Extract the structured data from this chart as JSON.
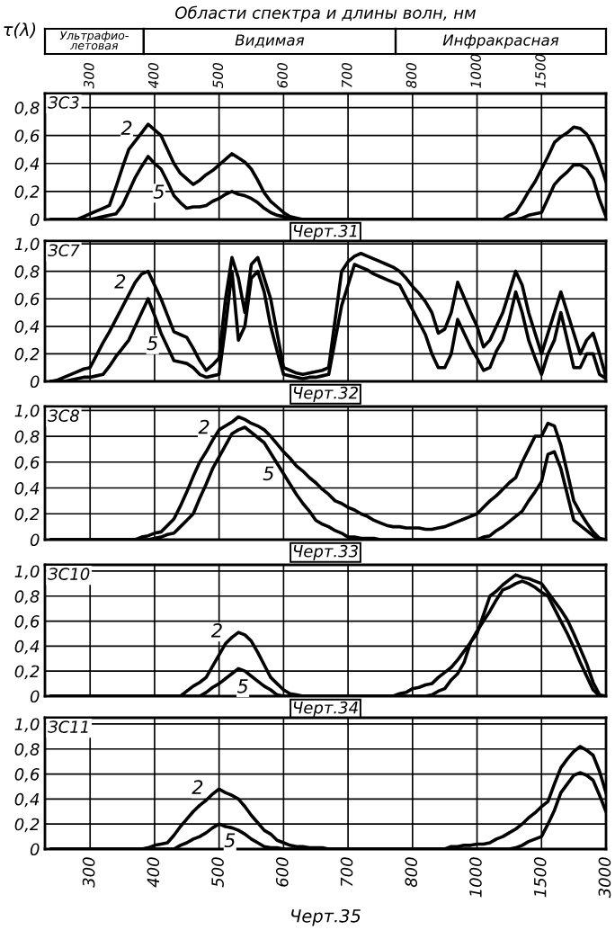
{
  "chart_data": [
    {
      "type": "line",
      "title": "ЗС3",
      "ylabel": "τ(λ)",
      "x2label": "Области спектра и длины волн, нм",
      "annotations": [
        "Черт.31",
        "Ультрафио-\nлетовая",
        "Видимая",
        "Инфракрасная"
      ],
      "categories": [
        null,
        null,
        null,
        null,
        null,
        null,
        "300",
        null,
        null,
        null,
        null,
        null,
        null,
        null,
        null,
        null,
        "400",
        null,
        null,
        null,
        null,
        null,
        null,
        null,
        null,
        null,
        "500",
        null,
        null,
        null,
        null,
        null,
        null,
        null,
        null,
        null,
        "600",
        null,
        null,
        null,
        null,
        null,
        null,
        null,
        null,
        null,
        "700",
        null,
        null,
        null,
        null,
        null,
        null,
        null,
        null,
        null,
        "800",
        null,
        null,
        null,
        null,
        null,
        null,
        null,
        null,
        null,
        "1000",
        null,
        null,
        null,
        null,
        null,
        null,
        null,
        null,
        null,
        "1500",
        null,
        null,
        null,
        null,
        null,
        null,
        null,
        null,
        null,
        null
      ],
      "ylim": [
        0,
        0.9
      ],
      "yticks": [
        {
          "value": 0,
          "label": "0"
        },
        {
          "value": 0.2,
          "label": "0,2"
        },
        {
          "value": 0.4,
          "label": "0,4"
        },
        {
          "value": 0.6,
          "label": "0,6"
        },
        {
          "value": 0.8,
          "label": "0,8"
        }
      ],
      "grid": true,
      "series": [
        {
          "name": "2",
          "color": "#000000",
          "values": [
            0,
            0,
            0,
            0,
            0,
            0.02,
            0.04,
            0.06,
            0.08,
            0.1,
            0.23,
            0.37,
            0.5,
            0.56,
            0.62,
            0.68,
            0.64,
            0.6,
            0.5,
            0.4,
            0.33,
            0.29,
            0.25,
            0.28,
            0.32,
            0.35,
            0.39,
            0.43,
            0.47,
            0.44,
            0.41,
            0.36,
            0.28,
            0.19,
            0.13,
            0.09,
            0.05,
            0.02,
            0.01,
            0,
            0,
            0,
            0,
            0,
            0,
            0,
            0,
            0,
            0,
            0,
            0,
            0,
            0,
            0,
            0,
            0,
            0,
            0,
            0,
            0,
            0,
            0,
            0,
            0,
            0,
            0,
            0,
            0,
            0,
            0,
            0,
            0.03,
            0.05,
            0.12,
            0.2,
            0.27,
            0.36,
            0.45,
            0.55,
            0.59,
            0.62,
            0.66,
            0.65,
            0.61,
            0.53,
            0.41,
            0.27
          ]
        },
        {
          "name": "5",
          "color": "#000000",
          "values": [
            0,
            0,
            0,
            0,
            0,
            0,
            0,
            0.01,
            0.02,
            0.03,
            0.04,
            0.1,
            0.2,
            0.3,
            0.38,
            0.45,
            0.4,
            0.36,
            0.27,
            0.17,
            0.12,
            0.08,
            0.09,
            0.09,
            0.1,
            0.13,
            0.15,
            0.18,
            0.2,
            0.18,
            0.17,
            0.15,
            0.12,
            0.08,
            0.05,
            0.03,
            0.02,
            0,
            0,
            0,
            0,
            0,
            0,
            0,
            0,
            0,
            0,
            0,
            0,
            0,
            0,
            0,
            0,
            0,
            0,
            0,
            0,
            0,
            0,
            0,
            0,
            0,
            0,
            0,
            0,
            0,
            0,
            0,
            0,
            0,
            0,
            0,
            0,
            0.01,
            0.03,
            0.04,
            0.05,
            0.15,
            0.25,
            0.3,
            0.34,
            0.39,
            0.39,
            0.36,
            0.29,
            0.14,
            0.02
          ]
        }
      ]
    },
    {
      "type": "line",
      "title": "ЗС7",
      "annotations": [
        "Черт.32"
      ],
      "categories": [
        null,
        null,
        null,
        null,
        null,
        null,
        "300",
        null,
        null,
        null,
        null,
        null,
        null,
        null,
        null,
        null,
        "400",
        null,
        null,
        null,
        null,
        null,
        null,
        null,
        null,
        null,
        "500",
        null,
        null,
        null,
        null,
        null,
        null,
        null,
        null,
        null,
        "600",
        null,
        null,
        null,
        null,
        null,
        null,
        null,
        null,
        null,
        "700",
        null,
        null,
        null,
        null,
        null,
        null,
        null,
        null,
        null,
        "800",
        null,
        null,
        null,
        null,
        null,
        null,
        null,
        null,
        null,
        "1000",
        null,
        null,
        null,
        null,
        null,
        null,
        null,
        null,
        null,
        "1500",
        null,
        null,
        null,
        null,
        null,
        null,
        null,
        null,
        null,
        "3000"
      ],
      "ylim": [
        0,
        1.02
      ],
      "yticks": [
        {
          "value": 0,
          "label": "0"
        },
        {
          "value": 0.2,
          "label": "0,2"
        },
        {
          "value": 0.4,
          "label": "0,4"
        },
        {
          "value": 0.6,
          "label": "0,6"
        },
        {
          "value": 0.8,
          "label": "0,8"
        },
        {
          "value": 1.0,
          "label": "1,0"
        }
      ],
      "grid": true,
      "tick_labels": "y",
      "series": [
        {
          "name": "2",
          "color": "#000000",
          "values": [
            0,
            0.01,
            0.03,
            0.05,
            0.07,
            0.09,
            0.1,
            0.19,
            0.28,
            0.36,
            0.45,
            0.54,
            0.63,
            0.72,
            0.78,
            0.8,
            0.7,
            0.6,
            0.48,
            0.36,
            0.34,
            0.32,
            0.24,
            0.15,
            0.08,
            0.12,
            0.17,
            0.6,
            0.9,
            0.75,
            0.5,
            0.85,
            0.9,
            0.75,
            0.6,
            0.35,
            0.1,
            0.08,
            0.06,
            0.05,
            0.06,
            0.07,
            0.08,
            0.1,
            0.45,
            0.8,
            0.87,
            0.91,
            0.93,
            0.91,
            0.89,
            0.87,
            0.85,
            0.83,
            0.8,
            0.75,
            0.69,
            0.64,
            0.58,
            0.5,
            0.35,
            0.38,
            0.5,
            0.72,
            0.61,
            0.5,
            0.4,
            0.25,
            0.3,
            0.4,
            0.5,
            0.65,
            0.8,
            0.7,
            0.5,
            0.35,
            0.2,
            0.35,
            0.5,
            0.65,
            0.5,
            0.35,
            0.2,
            0.3,
            0.35,
            0.2,
            0.03
          ]
        },
        {
          "name": "5",
          "color": "#000000",
          "values": [
            0,
            0,
            0,
            0.01,
            0.02,
            0.03,
            0.03,
            0.04,
            0.05,
            0.11,
            0.18,
            0.24,
            0.3,
            0.4,
            0.5,
            0.6,
            0.48,
            0.35,
            0.25,
            0.15,
            0.14,
            0.13,
            0.1,
            0.05,
            0.03,
            0.04,
            0.05,
            0.4,
            0.8,
            0.3,
            0.4,
            0.75,
            0.8,
            0.65,
            0.4,
            0.22,
            0.05,
            0.04,
            0.03,
            0.02,
            0.03,
            0.03,
            0.04,
            0.05,
            0.3,
            0.55,
            0.7,
            0.85,
            0.83,
            0.81,
            0.78,
            0.76,
            0.74,
            0.72,
            0.7,
            0.61,
            0.52,
            0.43,
            0.34,
            0.2,
            0.1,
            0.1,
            0.2,
            0.45,
            0.35,
            0.25,
            0.17,
            0.08,
            0.1,
            0.22,
            0.3,
            0.45,
            0.65,
            0.5,
            0.3,
            0.17,
            0.05,
            0.2,
            0.3,
            0.5,
            0.3,
            0.1,
            0.1,
            0.2,
            0.2,
            0.05,
            0.02
          ]
        }
      ]
    },
    {
      "type": "line",
      "title": "ЗС8",
      "annotations": [
        "Черт.33"
      ],
      "categories": [
        null,
        null,
        null,
        null,
        null,
        null,
        "300",
        null,
        null,
        null,
        null,
        null,
        null,
        null,
        null,
        null,
        "400",
        null,
        null,
        null,
        null,
        null,
        null,
        null,
        null,
        null,
        "500",
        null,
        null,
        null,
        null,
        null,
        null,
        null,
        null,
        null,
        "600",
        null,
        null,
        null,
        null,
        null,
        null,
        null,
        null,
        null,
        "700",
        null,
        null,
        null,
        null,
        null,
        null,
        null,
        null,
        null,
        "800",
        null,
        null,
        null,
        null,
        null,
        null,
        null,
        null,
        null,
        "1000",
        null,
        null,
        null,
        null,
        null,
        null,
        null,
        null,
        null,
        "1500",
        null,
        null,
        null,
        null,
        null,
        null,
        null,
        null,
        null,
        "3000"
      ],
      "ylim": [
        0,
        1.03
      ],
      "yticks": [
        {
          "value": 0,
          "label": "0"
        },
        {
          "value": 0.2,
          "label": "0,2"
        },
        {
          "value": 0.4,
          "label": "0,4"
        },
        {
          "value": 0.6,
          "label": "0,6"
        },
        {
          "value": 0.8,
          "label": "0,8"
        },
        {
          "value": 1.0,
          "label": "1,0"
        }
      ],
      "grid": true,
      "tick_labels": "y",
      "series": [
        {
          "name": "2",
          "color": "#000000",
          "values": [
            0,
            0,
            0,
            0,
            0,
            0,
            0,
            0,
            0,
            0,
            0,
            0,
            0,
            0,
            0.02,
            0.03,
            0.05,
            0.06,
            0.11,
            0.16,
            0.26,
            0.37,
            0.49,
            0.6,
            0.68,
            0.77,
            0.85,
            0.88,
            0.91,
            0.95,
            0.93,
            0.9,
            0.88,
            0.85,
            0.8,
            0.74,
            0.68,
            0.63,
            0.57,
            0.53,
            0.48,
            0.44,
            0.39,
            0.35,
            0.3,
            0.28,
            0.25,
            0.23,
            0.2,
            0.18,
            0.15,
            0.13,
            0.11,
            0.1,
            0.1,
            0.09,
            0.09,
            0.09,
            0.08,
            0.08,
            0.09,
            0.1,
            0.12,
            0.14,
            0.16,
            0.18,
            0.2,
            0.25,
            0.3,
            0.34,
            0.39,
            0.44,
            0.48,
            0.6,
            0.7,
            0.8,
            0.8,
            0.9,
            0.88,
            0.73,
            0.52,
            0.3,
            0.21,
            0.13,
            0.06,
            0.01,
            0
          ]
        },
        {
          "name": "5",
          "color": "#000000",
          "values": [
            0,
            0,
            0,
            0,
            0,
            0,
            0,
            0,
            0,
            0,
            0,
            0,
            0,
            0,
            0,
            0,
            0.01,
            0.02,
            0.04,
            0.05,
            0.1,
            0.15,
            0.2,
            0.32,
            0.43,
            0.55,
            0.64,
            0.73,
            0.82,
            0.85,
            0.87,
            0.83,
            0.79,
            0.75,
            0.67,
            0.59,
            0.51,
            0.43,
            0.35,
            0.28,
            0.22,
            0.15,
            0.12,
            0.1,
            0.07,
            0.05,
            0.02,
            0.02,
            0.01,
            0.01,
            0.01,
            0,
            0,
            0,
            0,
            0,
            0,
            0,
            0,
            0,
            0,
            0,
            0,
            0,
            0,
            0,
            0,
            0.02,
            0.03,
            0.07,
            0.1,
            0.14,
            0.18,
            0.22,
            0.3,
            0.37,
            0.45,
            0.66,
            0.68,
            0.55,
            0.35,
            0.15,
            0.11,
            0.07,
            0.03,
            0,
            0
          ]
        }
      ]
    },
    {
      "type": "line",
      "title": "ЗС10",
      "annotations": [
        "Черт.34"
      ],
      "categories": [
        null,
        null,
        null,
        null,
        null,
        null,
        "300",
        null,
        null,
        null,
        null,
        null,
        null,
        null,
        null,
        null,
        "400",
        null,
        null,
        null,
        null,
        null,
        null,
        null,
        null,
        null,
        "500",
        null,
        null,
        null,
        null,
        null,
        null,
        null,
        null,
        null,
        "600",
        null,
        null,
        null,
        null,
        null,
        null,
        null,
        null,
        null,
        "700",
        null,
        null,
        null,
        null,
        null,
        null,
        null,
        null,
        null,
        "800",
        null,
        null,
        null,
        null,
        null,
        null,
        null,
        null,
        null,
        "1000",
        null,
        null,
        null,
        null,
        null,
        null,
        null,
        null,
        null,
        "1500",
        null,
        null,
        null,
        null,
        null,
        null,
        null,
        null,
        null,
        "3000"
      ],
      "ylim": [
        0,
        1.05
      ],
      "yticks": [
        {
          "value": 0,
          "label": "0"
        },
        {
          "value": 0.2,
          "label": "0,2"
        },
        {
          "value": 0.4,
          "label": "0,4"
        },
        {
          "value": 0.6,
          "label": "0,6"
        },
        {
          "value": 0.8,
          "label": "0,8"
        },
        {
          "value": 1.0,
          "label": "1,0"
        }
      ],
      "grid": true,
      "tick_labels": "y",
      "series": [
        {
          "name": "2",
          "color": "#000000",
          "values": [
            0,
            0,
            0,
            0,
            0,
            0,
            0,
            0,
            0,
            0,
            0,
            0,
            0,
            0,
            0,
            0,
            0,
            0,
            0,
            0,
            0,
            0.04,
            0.08,
            0.11,
            0.15,
            0.24,
            0.33,
            0.42,
            0.47,
            0.51,
            0.49,
            0.44,
            0.35,
            0.25,
            0.15,
            0.1,
            0.05,
            0.02,
            0.01,
            0,
            0,
            0,
            0,
            0,
            0,
            0,
            0,
            0,
            0,
            0,
            0,
            0,
            0,
            0,
            0.02,
            0.03,
            0.06,
            0.07,
            0.09,
            0.1,
            0.15,
            0.19,
            0.23,
            0.29,
            0.36,
            0.43,
            0.5,
            0.65,
            0.8,
            0.84,
            0.89,
            0.93,
            0.97,
            0.95,
            0.94,
            0.92,
            0.9,
            0.83,
            0.76,
            0.69,
            0.61,
            0.5,
            0.38,
            0.26,
            0.11,
            0.01,
            0
          ]
        },
        {
          "name": "5",
          "color": "#000000",
          "values": [
            0,
            0,
            0,
            0,
            0,
            0,
            0,
            0,
            0,
            0,
            0,
            0,
            0,
            0,
            0,
            0,
            0,
            0,
            0,
            0,
            0,
            0,
            0,
            0,
            0.03,
            0.07,
            0.1,
            0.14,
            0.18,
            0.22,
            0.2,
            0.16,
            0.12,
            0.08,
            0.05,
            0.01,
            0,
            0,
            0,
            0,
            0,
            0,
            0,
            0,
            0,
            0,
            0,
            0,
            0,
            0,
            0,
            0,
            0,
            0,
            0,
            0,
            0,
            0,
            0,
            0.01,
            0.04,
            0.06,
            0.13,
            0.18,
            0.27,
            0.43,
            0.52,
            0.6,
            0.68,
            0.77,
            0.85,
            0.87,
            0.9,
            0.92,
            0.9,
            0.87,
            0.83,
            0.8,
            0.7,
            0.6,
            0.5,
            0.39,
            0.27,
            0.16,
            0.05,
            0,
            0
          ]
        }
      ]
    },
    {
      "type": "line",
      "title": "ЗС11",
      "annotations": [
        "Черт.35"
      ],
      "categories": [
        null,
        null,
        null,
        null,
        null,
        null,
        "300",
        null,
        null,
        null,
        null,
        null,
        null,
        null,
        null,
        null,
        "400",
        null,
        null,
        null,
        null,
        null,
        null,
        null,
        null,
        null,
        "500",
        null,
        null,
        null,
        null,
        null,
        null,
        null,
        null,
        null,
        "600",
        null,
        null,
        null,
        null,
        null,
        null,
        null,
        null,
        null,
        "700",
        null,
        null,
        null,
        null,
        null,
        null,
        null,
        null,
        null,
        "800",
        null,
        null,
        null,
        null,
        null,
        null,
        null,
        null,
        null,
        "1000",
        null,
        null,
        null,
        null,
        null,
        null,
        null,
        null,
        null,
        "1500",
        null,
        null,
        null,
        null,
        null,
        null,
        null,
        null,
        null,
        "3000"
      ],
      "ylim": [
        0,
        1.05
      ],
      "yticks": [
        {
          "value": 0,
          "label": "0"
        },
        {
          "value": 0.2,
          "label": "0,2"
        },
        {
          "value": 0.4,
          "label": "0,4"
        },
        {
          "value": 0.6,
          "label": "0,6"
        },
        {
          "value": 0.8,
          "label": "0,8"
        },
        {
          "value": 1.0,
          "label": "1,0"
        }
      ],
      "grid": true,
      "series": [
        {
          "name": "2",
          "color": "#000000",
          "values": [
            0,
            0,
            0,
            0,
            0,
            0,
            0,
            0,
            0,
            0,
            0,
            0,
            0,
            0,
            0,
            0.01,
            0.03,
            0.04,
            0.05,
            0.11,
            0.18,
            0.24,
            0.3,
            0.35,
            0.39,
            0.44,
            0.48,
            0.45,
            0.43,
            0.4,
            0.34,
            0.27,
            0.21,
            0.15,
            0.12,
            0.07,
            0.05,
            0.03,
            0.02,
            0.02,
            0.01,
            0.01,
            0.01,
            0,
            0,
            0,
            0,
            0,
            0,
            0,
            0,
            0,
            0,
            0,
            0,
            0,
            0,
            0,
            0,
            0,
            0,
            0,
            0.02,
            0.02,
            0.03,
            0.03,
            0.04,
            0.04,
            0.05,
            0.08,
            0.1,
            0.13,
            0.16,
            0.2,
            0.25,
            0.29,
            0.34,
            0.38,
            0.52,
            0.65,
            0.72,
            0.78,
            0.82,
            0.79,
            0.75,
            0.62,
            0.45
          ]
        },
        {
          "name": "5",
          "color": "#000000",
          "values": [
            0,
            0,
            0,
            0,
            0,
            0,
            0,
            0,
            0,
            0,
            0,
            0,
            0,
            0,
            0,
            0,
            0,
            0,
            0,
            0,
            0.03,
            0.05,
            0.08,
            0.1,
            0.13,
            0.17,
            0.2,
            0.18,
            0.17,
            0.15,
            0.12,
            0.08,
            0.05,
            0.02,
            0.01,
            0.01,
            0,
            0,
            0,
            0,
            0,
            0,
            0,
            0,
            0,
            0,
            0,
            0,
            0,
            0,
            0,
            0,
            0,
            0,
            0,
            0,
            0,
            0,
            0,
            0,
            0,
            0,
            0,
            0,
            0,
            0,
            0,
            0,
            0,
            0,
            0,
            0,
            0.01,
            0.03,
            0.06,
            0.08,
            0.1,
            0.2,
            0.31,
            0.45,
            0.52,
            0.59,
            0.61,
            0.59,
            0.55,
            0.43,
            0.3
          ]
        }
      ]
    }
  ]
}
